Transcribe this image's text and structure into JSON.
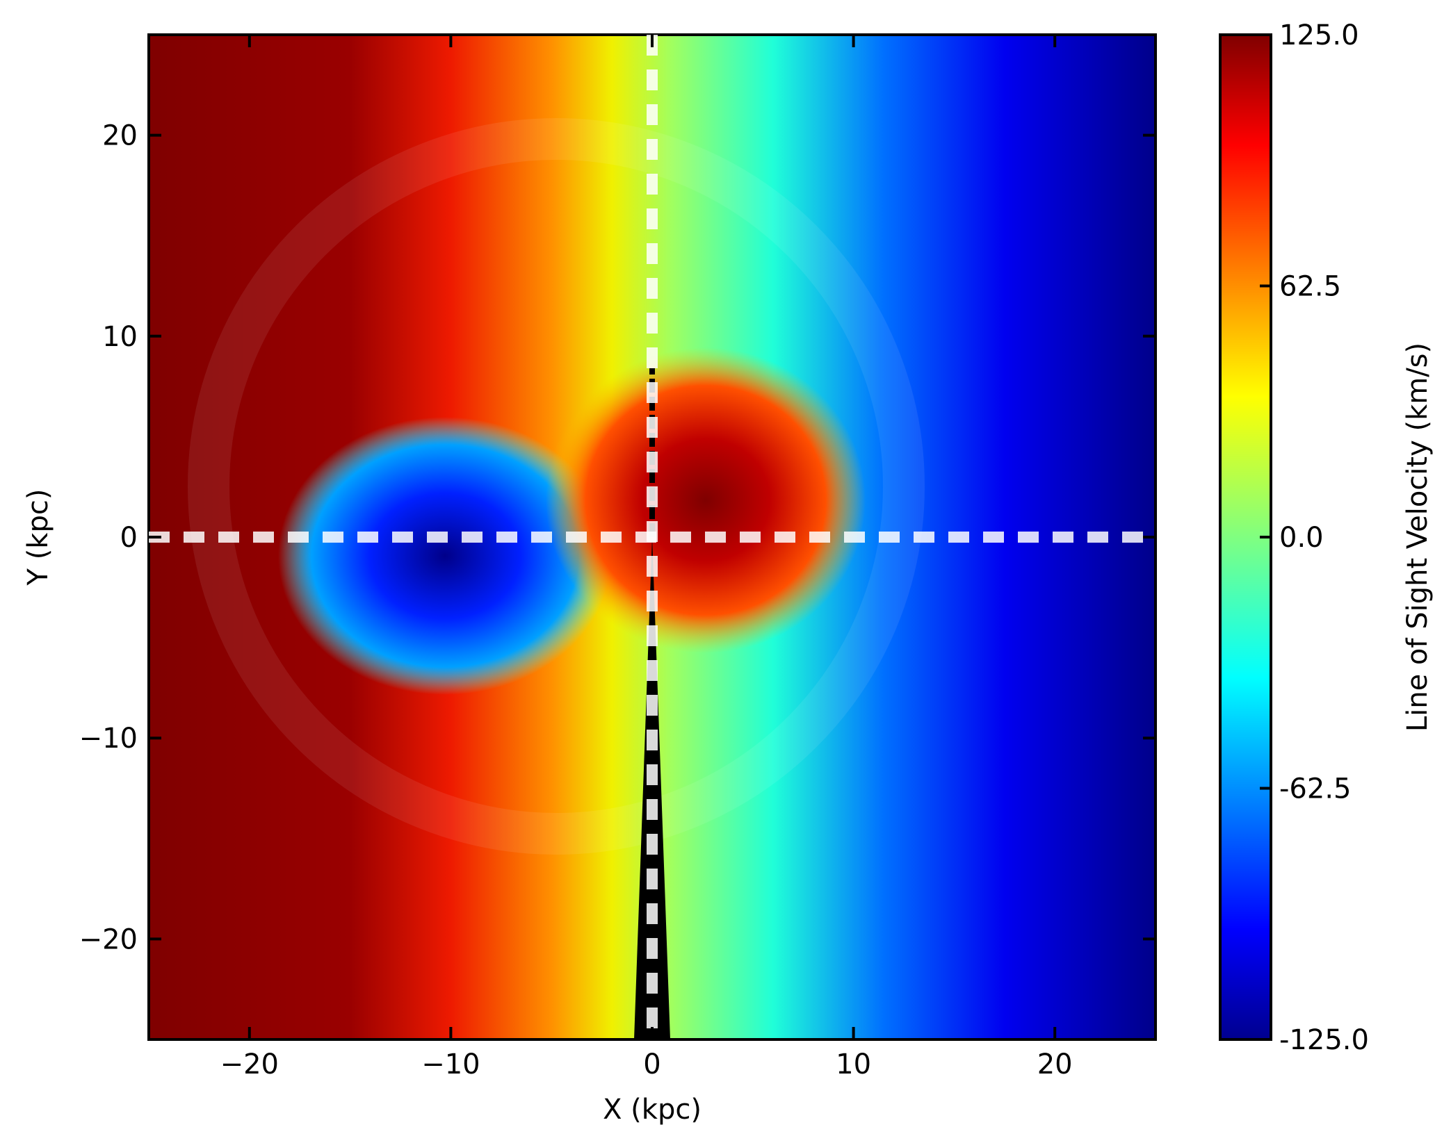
{
  "chart_data": {
    "type": "heatmap",
    "xlabel": "X (kpc)",
    "ylabel": "Y (kpc)",
    "xlim": [
      -25,
      25
    ],
    "ylim": [
      -25,
      25
    ],
    "xticks": [
      {
        "value": -20,
        "label": "−20"
      },
      {
        "value": -10,
        "label": "−10"
      },
      0,
      10,
      20
    ],
    "yticks": [
      {
        "value": -20,
        "label": "−20"
      },
      {
        "value": -10,
        "label": "−10"
      },
      0,
      10,
      20
    ],
    "colormap": "jet",
    "colorbar": {
      "label": "Line of Sight Velocity (km/s)",
      "lim": [
        -125,
        125
      ],
      "ticks": [
        {
          "value": -125,
          "label": "-125.0"
        },
        -62.5,
        {
          "value": 0,
          "label": "0.0"
        },
        62.5,
        {
          "value": 125,
          "label": "125.0"
        }
      ]
    },
    "reference_lines": [
      {
        "axis": "x",
        "value": 0
      },
      {
        "axis": "y",
        "value": 0
      }
    ]
  }
}
